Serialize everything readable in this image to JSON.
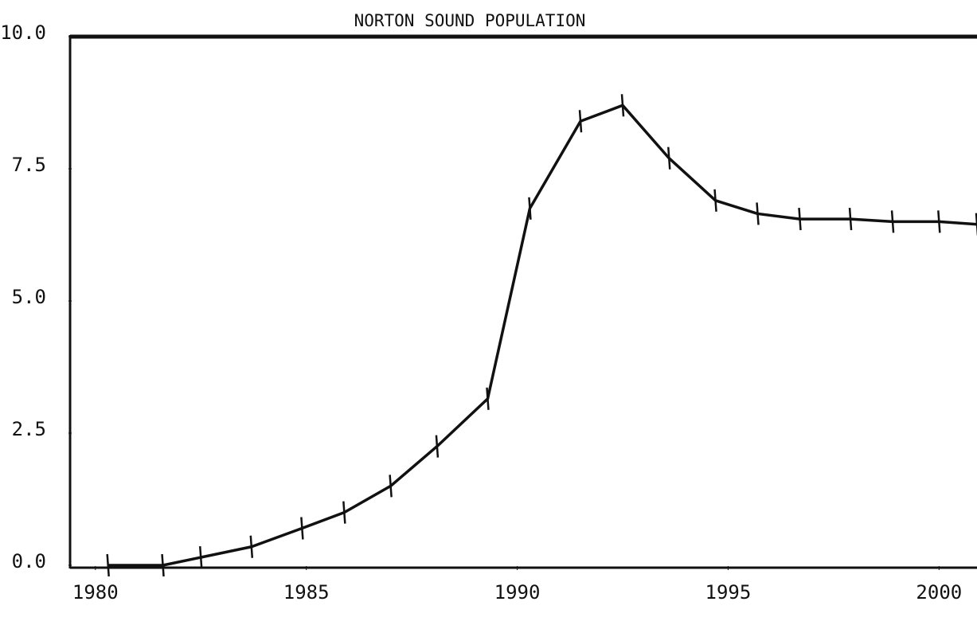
{
  "chart_data": {
    "type": "line",
    "title": "NORTON SOUND POPULATION",
    "x": [
      1980.3,
      1981.6,
      1982.5,
      1983.7,
      1984.9,
      1985.9,
      1987.0,
      1988.1,
      1989.3,
      1990.3,
      1991.5,
      1992.5,
      1993.6,
      1994.7,
      1995.7,
      1996.7,
      1997.9,
      1998.9,
      2000.0,
      2000.9
    ],
    "series": [
      {
        "color": "#111111",
        "values": [
          0,
          0,
          0.15,
          0.35,
          0.7,
          1.0,
          1.5,
          2.25,
          3.15,
          6.75,
          8.4,
          8.7,
          7.7,
          6.9,
          6.65,
          6.55,
          6.55,
          6.5,
          6.5,
          6.45
        ]
      }
    ],
    "xlim": [
      1979.4,
      2000.9
    ],
    "xticks": [
      1980,
      1985,
      1990,
      1995,
      2000
    ],
    "ylim": [
      0,
      10
    ],
    "yticks": [
      {
        "value": 0,
        "label": "0.0"
      },
      2.5,
      {
        "value": 5,
        "label": "5.0"
      },
      7.5,
      {
        "value": 10,
        "label": "10.0"
      }
    ]
  }
}
